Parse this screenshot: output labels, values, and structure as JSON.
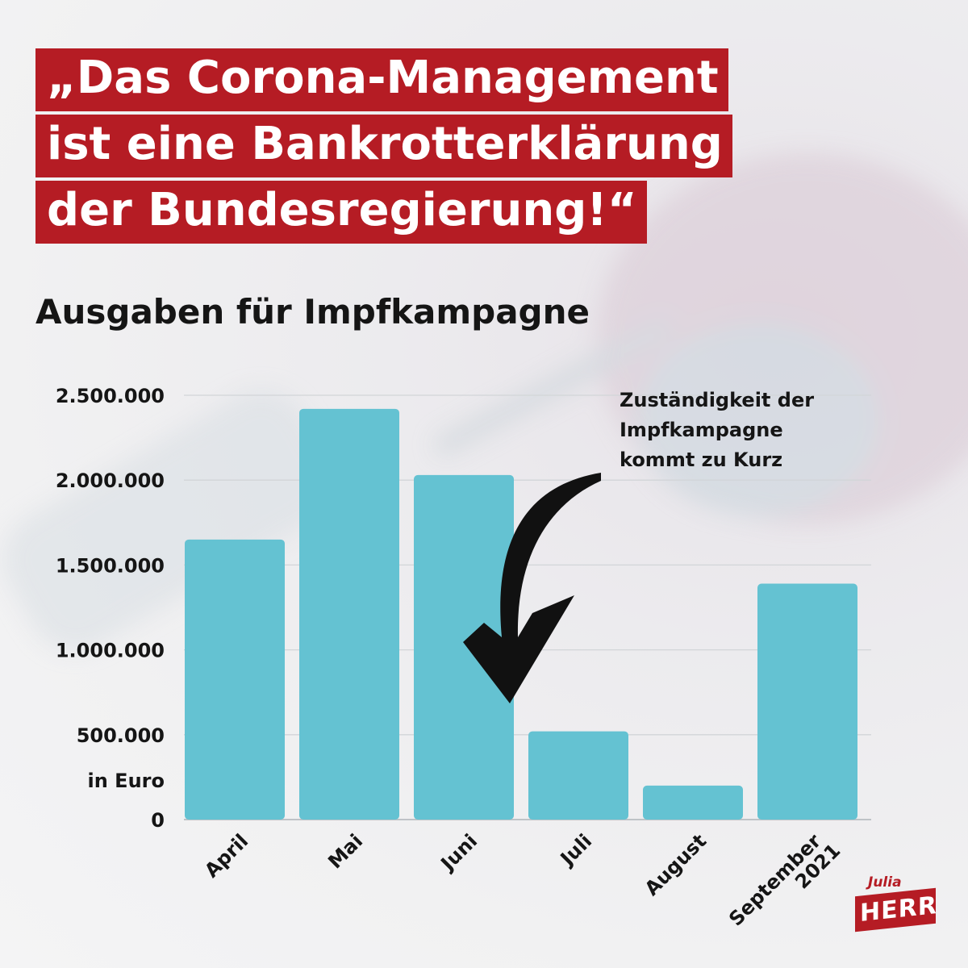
{
  "headline": {
    "lines": [
      "„Das Corona-Management",
      "ist eine Bankrotterklärung",
      "der Bundesregierung!“"
    ]
  },
  "chart_title": "Ausgaben für Impfkampagne",
  "annotation": {
    "lines": [
      "Zuständigkeit der",
      "Impfkampagne",
      "kommt zu Kurz"
    ]
  },
  "logo": {
    "first": "Julia",
    "last": "HERR"
  },
  "colors": {
    "bar": "#64c2d2",
    "headline_bg": "#b51c24",
    "text": "#151515",
    "arrow": "#111111"
  },
  "chart_data": {
    "type": "bar",
    "title": "Ausgaben für Impfkampagne",
    "categories": [
      "April",
      "Mai",
      "Juni",
      "Juli",
      "August",
      "September"
    ],
    "category_suffix": "2021",
    "values": [
      1650000,
      2420000,
      2030000,
      520000,
      200000,
      1390000
    ],
    "ylabel": "in Euro",
    "ylim": [
      0,
      2500000
    ],
    "yticks": [
      0,
      500000,
      1000000,
      1500000,
      2000000,
      2500000
    ],
    "ytick_labels": [
      "0",
      "500.000",
      "1.000.000",
      "1.500.000",
      "2.000.000",
      "2.500.000"
    ],
    "grid": true
  }
}
